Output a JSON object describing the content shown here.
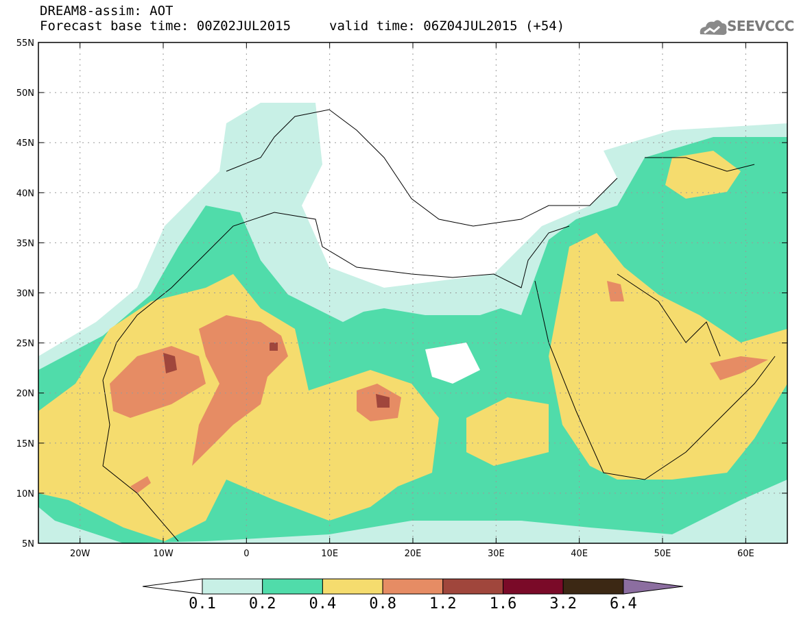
{
  "header": {
    "model_line": "DREAM8-assim: AOT",
    "base_time_line": "Forecast base time: 00Z02JUL2015",
    "valid_time_line": "valid time: 06Z04JUL2015 (+54)"
  },
  "logo": {
    "text": "SEEVCCC",
    "icon": "cloud-icon"
  },
  "map": {
    "lon_range": [
      -25,
      65
    ],
    "lat_range": [
      5,
      55
    ],
    "lon_ticks": [
      "20W",
      "10W",
      "0",
      "10E",
      "20E",
      "30E",
      "40E",
      "50E",
      "60E"
    ],
    "lat_ticks": [
      "5N",
      "10N",
      "15N",
      "20N",
      "25N",
      "30N",
      "35N",
      "40N",
      "45N",
      "50N",
      "55N"
    ],
    "gridlines": true
  },
  "colorbar": {
    "levels": [
      "0.1",
      "0.2",
      "0.4",
      "0.8",
      "1.2",
      "1.6",
      "3.2",
      "6.4"
    ],
    "colors": [
      "#c8f0e6",
      "#50dcaa",
      "#f5dc6e",
      "#e68c64",
      "#a0463c",
      "#7a0a28",
      "#3c2814",
      "#8c6ea0"
    ],
    "under_color": "#ffffff"
  }
}
